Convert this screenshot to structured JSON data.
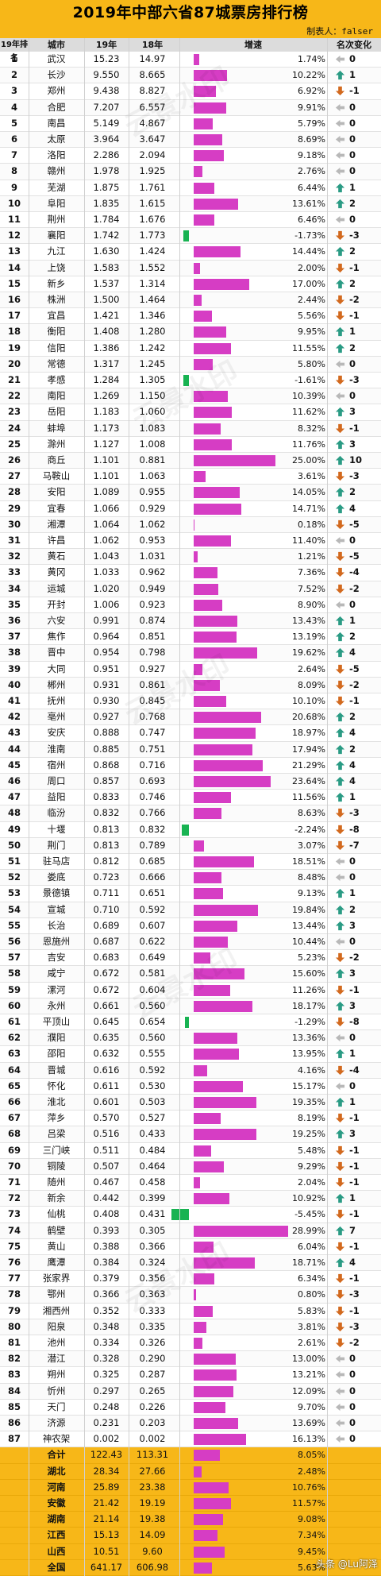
{
  "title": "2019年中部六省87城票房排行榜",
  "author": "制表人：falser",
  "watermark": "云景水印",
  "footer": "头条 @Lu阿泽",
  "headers": {
    "rank": "19年排名",
    "city": "城市",
    "v19": "19年",
    "v18": "18年",
    "growth": "增速",
    "change": "名次变化"
  },
  "colors": {
    "header": "#f7b718",
    "bar_positive": "#d63dc4",
    "bar_negative": "#18b352",
    "up": "#2a9b84",
    "down": "#d2691e"
  },
  "chart_data": {
    "type": "table",
    "columns": [
      "19年排名",
      "城市",
      "19年",
      "18年",
      "增速",
      "名次变化"
    ],
    "rows": [
      {
        "rank": "1",
        "city": "武汉",
        "v19": "15.23",
        "v18": "14.97",
        "pct": "1.74%",
        "g": 1.74,
        "chg": "0",
        "dir": "none"
      },
      {
        "rank": "2",
        "city": "长沙",
        "v19": "9.550",
        "v18": "8.665",
        "pct": "10.22%",
        "g": 10.22,
        "chg": "1",
        "dir": "up"
      },
      {
        "rank": "3",
        "city": "郑州",
        "v19": "9.438",
        "v18": "8.827",
        "pct": "6.92%",
        "g": 6.92,
        "chg": "-1",
        "dir": "down"
      },
      {
        "rank": "4",
        "city": "合肥",
        "v19": "7.207",
        "v18": "6.557",
        "pct": "9.91%",
        "g": 9.91,
        "chg": "0",
        "dir": "none"
      },
      {
        "rank": "5",
        "city": "南昌",
        "v19": "5.149",
        "v18": "4.867",
        "pct": "5.79%",
        "g": 5.79,
        "chg": "0",
        "dir": "none"
      },
      {
        "rank": "6",
        "city": "太原",
        "v19": "3.964",
        "v18": "3.647",
        "pct": "8.69%",
        "g": 8.69,
        "chg": "0",
        "dir": "none"
      },
      {
        "rank": "7",
        "city": "洛阳",
        "v19": "2.286",
        "v18": "2.094",
        "pct": "9.18%",
        "g": 9.18,
        "chg": "0",
        "dir": "none"
      },
      {
        "rank": "8",
        "city": "赣州",
        "v19": "1.978",
        "v18": "1.925",
        "pct": "2.76%",
        "g": 2.76,
        "chg": "0",
        "dir": "none"
      },
      {
        "rank": "9",
        "city": "芜湖",
        "v19": "1.875",
        "v18": "1.761",
        "pct": "6.44%",
        "g": 6.44,
        "chg": "1",
        "dir": "up"
      },
      {
        "rank": "10",
        "city": "阜阳",
        "v19": "1.835",
        "v18": "1.615",
        "pct": "13.61%",
        "g": 13.61,
        "chg": "2",
        "dir": "up"
      },
      {
        "rank": "11",
        "city": "荆州",
        "v19": "1.784",
        "v18": "1.676",
        "pct": "6.46%",
        "g": 6.46,
        "chg": "0",
        "dir": "none"
      },
      {
        "rank": "12",
        "city": "襄阳",
        "v19": "1.742",
        "v18": "1.773",
        "pct": "-1.73%",
        "g": -1.73,
        "chg": "-3",
        "dir": "down"
      },
      {
        "rank": "13",
        "city": "九江",
        "v19": "1.630",
        "v18": "1.424",
        "pct": "14.44%",
        "g": 14.44,
        "chg": "2",
        "dir": "up"
      },
      {
        "rank": "14",
        "city": "上饶",
        "v19": "1.583",
        "v18": "1.552",
        "pct": "2.00%",
        "g": 2.0,
        "chg": "-1",
        "dir": "down"
      },
      {
        "rank": "15",
        "city": "新乡",
        "v19": "1.537",
        "v18": "1.314",
        "pct": "17.00%",
        "g": 17.0,
        "chg": "2",
        "dir": "up"
      },
      {
        "rank": "16",
        "city": "株洲",
        "v19": "1.500",
        "v18": "1.464",
        "pct": "2.44%",
        "g": 2.44,
        "chg": "-2",
        "dir": "down"
      },
      {
        "rank": "17",
        "city": "宜昌",
        "v19": "1.421",
        "v18": "1.346",
        "pct": "5.56%",
        "g": 5.56,
        "chg": "-1",
        "dir": "down"
      },
      {
        "rank": "18",
        "city": "衡阳",
        "v19": "1.408",
        "v18": "1.280",
        "pct": "9.95%",
        "g": 9.95,
        "chg": "1",
        "dir": "up"
      },
      {
        "rank": "19",
        "city": "信阳",
        "v19": "1.386",
        "v18": "1.242",
        "pct": "11.55%",
        "g": 11.55,
        "chg": "2",
        "dir": "up"
      },
      {
        "rank": "20",
        "city": "常德",
        "v19": "1.317",
        "v18": "1.245",
        "pct": "5.80%",
        "g": 5.8,
        "chg": "0",
        "dir": "none"
      },
      {
        "rank": "21",
        "city": "孝感",
        "v19": "1.284",
        "v18": "1.305",
        "pct": "-1.61%",
        "g": -1.61,
        "chg": "-3",
        "dir": "down"
      },
      {
        "rank": "22",
        "city": "南阳",
        "v19": "1.269",
        "v19b": "",
        "v18": "1.150",
        "pct": "10.39%",
        "g": 10.39,
        "chg": "0",
        "dir": "none"
      },
      {
        "rank": "23",
        "city": "岳阳",
        "v19": "1.183",
        "v18": "1.060",
        "pct": "11.62%",
        "g": 11.62,
        "chg": "3",
        "dir": "up"
      },
      {
        "rank": "24",
        "city": "蚌埠",
        "v19": "1.173",
        "v18": "1.083",
        "pct": "8.32%",
        "g": 8.32,
        "chg": "-1",
        "dir": "down"
      },
      {
        "rank": "25",
        "city": "滁州",
        "v19": "1.127",
        "v18": "1.008",
        "pct": "11.76%",
        "g": 11.76,
        "chg": "3",
        "dir": "up"
      },
      {
        "rank": "26",
        "city": "商丘",
        "v19": "1.101",
        "v18": "0.881",
        "pct": "25.00%",
        "g": 25.0,
        "chg": "10",
        "dir": "up"
      },
      {
        "rank": "27",
        "city": "马鞍山",
        "v19": "1.101",
        "v18": "1.063",
        "pct": "3.61%",
        "g": 3.61,
        "chg": "-3",
        "dir": "down"
      },
      {
        "rank": "28",
        "city": "安阳",
        "v19": "1.089",
        "v18": "0.955",
        "pct": "14.05%",
        "g": 14.05,
        "chg": "2",
        "dir": "up"
      },
      {
        "rank": "29",
        "city": "宜春",
        "v19": "1.066",
        "v18": "0.929",
        "pct": "14.71%",
        "g": 14.71,
        "chg": "4",
        "dir": "up"
      },
      {
        "rank": "30",
        "city": "湘潭",
        "v19": "1.064",
        "v18": "1.062",
        "pct": "0.18%",
        "g": 0.18,
        "chg": "-5",
        "dir": "down"
      },
      {
        "rank": "31",
        "city": "许昌",
        "v19": "1.062",
        "v18": "0.953",
        "pct": "11.40%",
        "g": 11.4,
        "chg": "0",
        "dir": "none"
      },
      {
        "rank": "32",
        "city": "黄石",
        "v19": "1.043",
        "v18": "1.031",
        "pct": "1.21%",
        "g": 1.21,
        "chg": "-5",
        "dir": "down"
      },
      {
        "rank": "33",
        "city": "黄冈",
        "v19": "1.033",
        "v18": "0.962",
        "pct": "7.36%",
        "g": 7.36,
        "chg": "-4",
        "dir": "down"
      },
      {
        "rank": "34",
        "city": "运城",
        "v19": "1.020",
        "v18": "0.949",
        "pct": "7.52%",
        "g": 7.52,
        "chg": "-2",
        "dir": "down"
      },
      {
        "rank": "35",
        "city": "开封",
        "v19": "1.006",
        "v18": "0.923",
        "pct": "8.90%",
        "g": 8.9,
        "chg": "0",
        "dir": "none"
      },
      {
        "rank": "36",
        "city": "六安",
        "v19": "0.991",
        "v18": "0.874",
        "pct": "13.43%",
        "g": 13.43,
        "chg": "1",
        "dir": "up"
      },
      {
        "rank": "37",
        "city": "焦作",
        "v19": "0.964",
        "v18": "0.851",
        "pct": "13.19%",
        "g": 13.19,
        "chg": "2",
        "dir": "up"
      },
      {
        "rank": "38",
        "city": "晋中",
        "v19": "0.954",
        "v18": "0.798",
        "pct": "19.62%",
        "g": 19.62,
        "chg": "4",
        "dir": "up"
      },
      {
        "rank": "39",
        "city": "大同",
        "v19": "0.951",
        "v18": "0.927",
        "pct": "2.64%",
        "g": 2.64,
        "chg": "-5",
        "dir": "down"
      },
      {
        "rank": "40",
        "city": "郴州",
        "v19": "0.931",
        "v18": "0.861",
        "pct": "8.09%",
        "g": 8.09,
        "chg": "-2",
        "dir": "down"
      },
      {
        "rank": "41",
        "city": "抚州",
        "v19": "0.930",
        "v18": "0.845",
        "pct": "10.10%",
        "g": 10.1,
        "chg": "-1",
        "dir": "down"
      },
      {
        "rank": "42",
        "city": "亳州",
        "v19": "0.927",
        "v18": "0.768",
        "pct": "20.68%",
        "g": 20.68,
        "chg": "2",
        "dir": "up"
      },
      {
        "rank": "43",
        "city": "安庆",
        "v19": "0.888",
        "v18": "0.747",
        "pct": "18.97%",
        "g": 18.97,
        "chg": "4",
        "dir": "up"
      },
      {
        "rank": "44",
        "city": "淮南",
        "v19": "0.885",
        "v18": "0.751",
        "pct": "17.94%",
        "g": 17.94,
        "chg": "2",
        "dir": "up"
      },
      {
        "rank": "45",
        "city": "宿州",
        "v19": "0.868",
        "v18": "0.716",
        "pct": "21.29%",
        "g": 21.29,
        "chg": "4",
        "dir": "up"
      },
      {
        "rank": "46",
        "city": "周口",
        "v19": "0.857",
        "v18": "0.693",
        "pct": "23.64%",
        "g": 23.64,
        "chg": "4",
        "dir": "up"
      },
      {
        "rank": "47",
        "city": "益阳",
        "v19": "0.833",
        "v18": "0.746",
        "pct": "11.56%",
        "g": 11.56,
        "chg": "1",
        "dir": "up"
      },
      {
        "rank": "48",
        "city": "临汾",
        "v19": "0.832",
        "v18": "0.766",
        "pct": "8.63%",
        "g": 8.63,
        "chg": "-3",
        "dir": "down"
      },
      {
        "rank": "49",
        "city": "十堰",
        "v19": "0.813",
        "v18": "0.832",
        "pct": "-2.24%",
        "g": -2.24,
        "chg": "-8",
        "dir": "down"
      },
      {
        "rank": "50",
        "city": "荆门",
        "v19": "0.813",
        "v18": "0.789",
        "pct": "3.07%",
        "g": 3.07,
        "chg": "-7",
        "dir": "down"
      },
      {
        "rank": "51",
        "city": "驻马店",
        "v19": "0.812",
        "v18": "0.685",
        "pct": "18.51%",
        "g": 18.51,
        "chg": "0",
        "dir": "none"
      },
      {
        "rank": "52",
        "city": "娄底",
        "v19": "0.723",
        "v18": "0.666",
        "pct": "8.48%",
        "g": 8.48,
        "chg": "0",
        "dir": "none"
      },
      {
        "rank": "53",
        "city": "景德镇",
        "v19": "0.711",
        "v18": "0.651",
        "pct": "9.13%",
        "g": 9.13,
        "chg": "1",
        "dir": "up"
      },
      {
        "rank": "54",
        "city": "宣城",
        "v19": "0.710",
        "v18": "0.592",
        "pct": "19.84%",
        "g": 19.84,
        "chg": "2",
        "dir": "up"
      },
      {
        "rank": "55",
        "city": "长治",
        "v19": "0.689",
        "v18": "0.607",
        "pct": "13.44%",
        "g": 13.44,
        "chg": "3",
        "dir": "up"
      },
      {
        "rank": "56",
        "city": "恩施州",
        "v19": "0.687",
        "v18": "0.622",
        "pct": "10.44%",
        "g": 10.44,
        "chg": "0",
        "dir": "none"
      },
      {
        "rank": "57",
        "city": "吉安",
        "v19": "0.683",
        "v18": "0.649",
        "pct": "5.23%",
        "g": 5.23,
        "chg": "-2",
        "dir": "down"
      },
      {
        "rank": "58",
        "city": "咸宁",
        "v19": "0.672",
        "v18": "0.581",
        "pct": "15.60%",
        "g": 15.6,
        "chg": "3",
        "dir": "up"
      },
      {
        "rank": "59",
        "city": "漯河",
        "v19": "0.672",
        "v18": "0.604",
        "pct": "11.26%",
        "g": 11.26,
        "chg": "-1",
        "dir": "down"
      },
      {
        "rank": "60",
        "city": "永州",
        "v19": "0.661",
        "v18": "0.560",
        "pct": "18.17%",
        "g": 18.17,
        "chg": "3",
        "dir": "up"
      },
      {
        "rank": "61",
        "city": "平顶山",
        "v19": "0.645",
        "v18": "0.654",
        "pct": "-1.29%",
        "g": -1.29,
        "chg": "-8",
        "dir": "down"
      },
      {
        "rank": "62",
        "city": "濮阳",
        "v19": "0.635",
        "v18": "0.560",
        "pct": "13.36%",
        "g": 13.36,
        "chg": "0",
        "dir": "none"
      },
      {
        "rank": "63",
        "city": "邵阳",
        "v19": "0.632",
        "v18": "0.555",
        "pct": "13.95%",
        "g": 13.95,
        "chg": "1",
        "dir": "up"
      },
      {
        "rank": "64",
        "city": "晋城",
        "v19": "0.616",
        "v18": "0.592",
        "pct": "4.16%",
        "g": 4.16,
        "chg": "-4",
        "dir": "down"
      },
      {
        "rank": "65",
        "city": "怀化",
        "v19": "0.611",
        "v18": "0.530",
        "pct": "15.17%",
        "g": 15.17,
        "chg": "0",
        "dir": "none"
      },
      {
        "rank": "66",
        "city": "淮北",
        "v19": "0.601",
        "v18": "0.503",
        "pct": "19.35%",
        "g": 19.35,
        "chg": "1",
        "dir": "up"
      },
      {
        "rank": "67",
        "city": "萍乡",
        "v19": "0.570",
        "v18": "0.527",
        "pct": "8.19%",
        "g": 8.19,
        "chg": "-1",
        "dir": "down"
      },
      {
        "rank": "68",
        "city": "吕梁",
        "v19": "0.516",
        "v18": "0.433",
        "pct": "19.25%",
        "g": 19.25,
        "chg": "3",
        "dir": "up"
      },
      {
        "rank": "69",
        "city": "三门峡",
        "v19": "0.511",
        "v18": "0.484",
        "pct": "5.48%",
        "g": 5.48,
        "chg": "-1",
        "dir": "down"
      },
      {
        "rank": "70",
        "city": "铜陵",
        "v19": "0.507",
        "v18": "0.464",
        "pct": "9.29%",
        "g": 9.29,
        "chg": "-1",
        "dir": "down"
      },
      {
        "rank": "71",
        "city": "随州",
        "v19": "0.467",
        "v18": "0.458",
        "pct": "2.04%",
        "g": 2.04,
        "chg": "-1",
        "dir": "down"
      },
      {
        "rank": "72",
        "city": "新余",
        "v19": "0.442",
        "v18": "0.399",
        "pct": "10.92%",
        "g": 10.92,
        "chg": "1",
        "dir": "up"
      },
      {
        "rank": "73",
        "city": "仙桃",
        "v19": "0.408",
        "v18": "0.431",
        "pct": "-5.45%",
        "g": -5.45,
        "chg": "-1",
        "dir": "down"
      },
      {
        "rank": "74",
        "city": "鹤壁",
        "v19": "0.393",
        "v18": "0.305",
        "pct": "28.99%",
        "g": 28.99,
        "chg": "7",
        "dir": "up"
      },
      {
        "rank": "75",
        "city": "黄山",
        "v19": "0.388",
        "v18": "0.366",
        "pct": "6.04%",
        "g": 6.04,
        "chg": "-1",
        "dir": "down"
      },
      {
        "rank": "76",
        "city": "鹰潭",
        "v19": "0.384",
        "v18": "0.324",
        "pct": "18.71%",
        "g": 18.71,
        "chg": "4",
        "dir": "up"
      },
      {
        "rank": "77",
        "city": "张家界",
        "v19": "0.379",
        "v18": "0.356",
        "pct": "6.34%",
        "g": 6.34,
        "chg": "-1",
        "dir": "down"
      },
      {
        "rank": "78",
        "city": "鄂州",
        "v19": "0.366",
        "v18": "0.363",
        "pct": "0.80%",
        "g": 0.8,
        "chg": "-3",
        "dir": "down"
      },
      {
        "rank": "79",
        "city": "湘西州",
        "v19": "0.352",
        "v18": "0.333",
        "pct": "5.83%",
        "g": 5.83,
        "chg": "-1",
        "dir": "down"
      },
      {
        "rank": "80",
        "city": "阳泉",
        "v19": "0.348",
        "v18": "0.335",
        "pct": "3.81%",
        "g": 3.81,
        "chg": "-3",
        "dir": "down"
      },
      {
        "rank": "81",
        "city": "池州",
        "v19": "0.334",
        "v18": "0.326",
        "pct": "2.61%",
        "g": 2.61,
        "chg": "-2",
        "dir": "down"
      },
      {
        "rank": "82",
        "city": "潜江",
        "v19": "0.328",
        "v18": "0.290",
        "pct": "13.00%",
        "g": 13.0,
        "chg": "0",
        "dir": "none"
      },
      {
        "rank": "83",
        "city": "朔州",
        "v19": "0.325",
        "v18": "0.287",
        "pct": "13.21%",
        "g": 13.21,
        "chg": "0",
        "dir": "none"
      },
      {
        "rank": "84",
        "city": "忻州",
        "v19": "0.297",
        "v18": "0.265",
        "pct": "12.09%",
        "g": 12.09,
        "chg": "0",
        "dir": "none"
      },
      {
        "rank": "85",
        "city": "天门",
        "v19": "0.248",
        "v18": "0.226",
        "pct": "9.70%",
        "g": 9.7,
        "chg": "0",
        "dir": "none"
      },
      {
        "rank": "86",
        "city": "济源",
        "v19": "0.231",
        "v18": "0.203",
        "pct": "13.69%",
        "g": 13.69,
        "chg": "0",
        "dir": "none"
      },
      {
        "rank": "87",
        "city": "神农架",
        "v19": "0.002",
        "v18": "0.002",
        "pct": "16.13%",
        "g": 16.13,
        "chg": "0",
        "dir": "none"
      }
    ],
    "summary": [
      {
        "city": "合计",
        "v19": "122.43",
        "v18": "113.31",
        "pct": "8.05%",
        "g": 8.05
      },
      {
        "city": "湖北",
        "v19": "28.34",
        "v18": "27.66",
        "pct": "2.48%",
        "g": 2.48
      },
      {
        "city": "河南",
        "v19": "25.89",
        "v18": "23.38",
        "pct": "10.76%",
        "g": 10.76
      },
      {
        "city": "安徽",
        "v19": "21.42",
        "v18": "19.19",
        "pct": "11.57%",
        "g": 11.57
      },
      {
        "city": "湖南",
        "v19": "21.14",
        "v18": "19.38",
        "pct": "9.08%",
        "g": 9.08
      },
      {
        "city": "江西",
        "v19": "15.13",
        "v18": "14.09",
        "pct": "7.34%",
        "g": 7.34
      },
      {
        "city": "山西",
        "v19": "10.51",
        "v18": "9.60",
        "pct": "9.45%",
        "g": 9.45
      },
      {
        "city": "全国",
        "v19": "641.17",
        "v18": "606.98",
        "pct": "5.63%",
        "g": 5.63
      }
    ]
  }
}
